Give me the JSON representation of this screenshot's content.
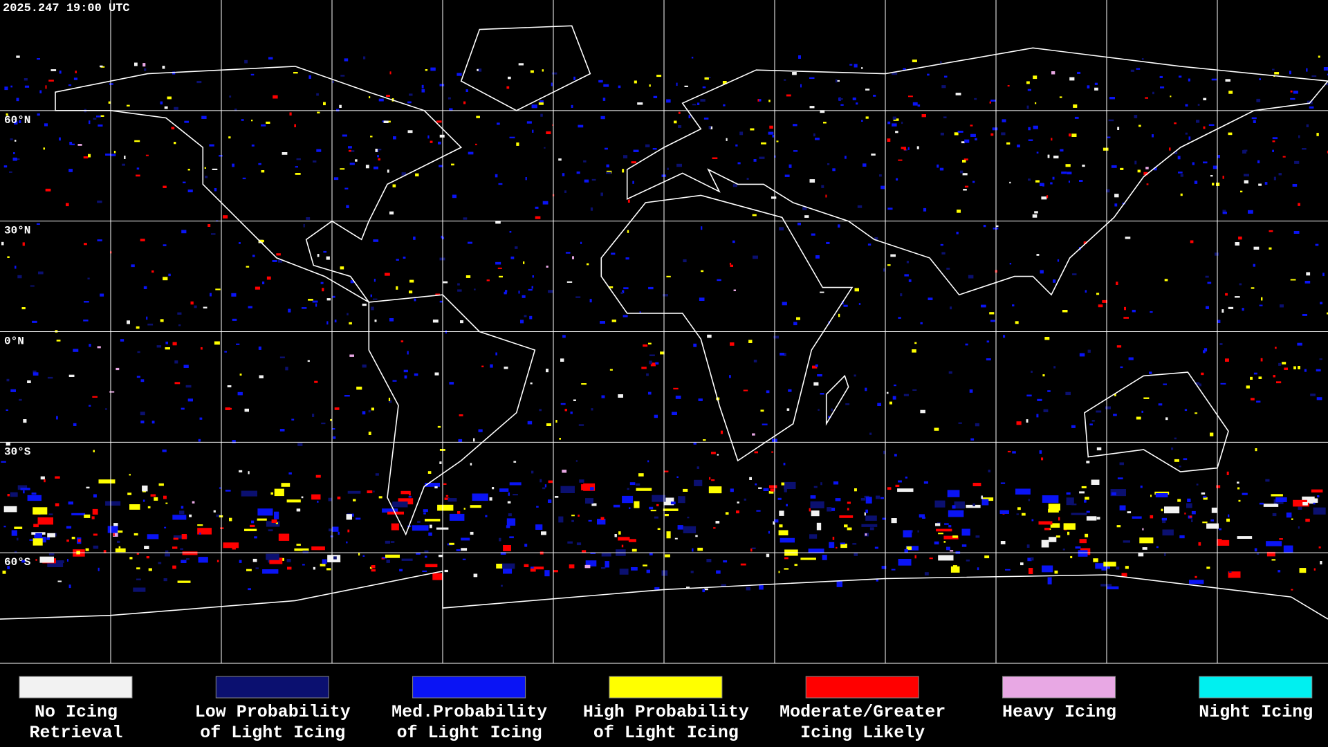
{
  "header": {
    "timestamp": "2025.247 19:00 UTC"
  },
  "latitude_labels": [
    "60°N",
    "30°N",
    "0°N",
    "30°S",
    "60°S"
  ],
  "legend": [
    {
      "label": [
        "No Icing",
        "Retrieval"
      ],
      "color": "#f2f2f2"
    },
    {
      "label": [
        "Low Probability",
        "of Light Icing"
      ],
      "color": "#0b1070"
    },
    {
      "label": [
        "Med.Probability",
        "of Light Icing"
      ],
      "color": "#0a14f5"
    },
    {
      "label": [
        "High Probability",
        "of Light Icing"
      ],
      "color": "#ffff00"
    },
    {
      "label": [
        "Moderate/Greater",
        "Icing Likely"
      ],
      "color": "#ff0000"
    },
    {
      "label": [
        "Heavy Icing"
      ],
      "color": "#e8a8e4"
    },
    {
      "label": [
        "Night Icing"
      ],
      "color": "#00f0f0"
    }
  ]
}
